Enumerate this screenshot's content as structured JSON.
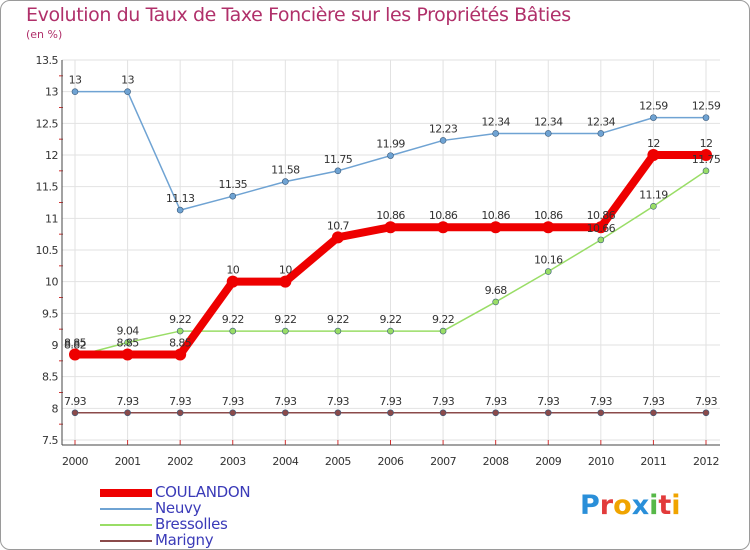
{
  "chart_data": {
    "type": "line",
    "title": "Evolution du Taux de Taxe Foncière sur les Propriétés Bâties",
    "subtitle": "(en %)",
    "xlabel": "",
    "ylabel": "",
    "categories": [
      "2000",
      "2001",
      "2002",
      "2003",
      "2004",
      "2005",
      "2006",
      "2007",
      "2008",
      "2009",
      "2010",
      "2011",
      "2012"
    ],
    "ylim": [
      7.5,
      13.5
    ],
    "yticks": [
      "7.5",
      "8",
      "8.5",
      "9",
      "9.5",
      "10",
      "10.5",
      "11",
      "11.5",
      "12",
      "12.5",
      "13",
      "13.5"
    ],
    "grid": true,
    "legend_position": "bottom-left",
    "series": [
      {
        "name": "COULANDON",
        "color": "#ee0000",
        "values": [
          8.85,
          8.85,
          8.85,
          10,
          10,
          10.7,
          10.86,
          10.86,
          10.86,
          10.86,
          10.86,
          12,
          12
        ],
        "labels": [
          "8.85",
          "8.85",
          "8.85",
          "10",
          "10",
          "10.7",
          "10.86",
          "10.86",
          "10.86",
          "10.86",
          "10.86",
          "12",
          "12"
        ]
      },
      {
        "name": "Neuvy",
        "color": "#6fa3d3",
        "values": [
          13,
          13,
          11.13,
          11.35,
          11.58,
          11.75,
          11.99,
          12.23,
          12.34,
          12.34,
          12.34,
          12.59,
          12.59
        ],
        "labels": [
          "13",
          "13",
          "11.13",
          "11.35",
          "11.58",
          "11.75",
          "11.99",
          "12.23",
          "12.34",
          "12.34",
          "12.34",
          "12.59",
          "12.59"
        ]
      },
      {
        "name": "Bressolles",
        "color": "#99dd66",
        "values": [
          8.82,
          9.04,
          9.22,
          9.22,
          9.22,
          9.22,
          9.22,
          9.22,
          9.68,
          10.16,
          10.66,
          11.19,
          11.75
        ],
        "labels": [
          "8.82",
          "9.04",
          "9.22",
          "9.22",
          "9.22",
          "9.22",
          "9.22",
          "9.22",
          "9.68",
          "10.16",
          "10.66",
          "11.19",
          "11.75"
        ]
      },
      {
        "name": "Marigny",
        "color": "#8b4a4a",
        "values": [
          7.93,
          7.93,
          7.93,
          7.93,
          7.93,
          7.93,
          7.93,
          7.93,
          7.93,
          7.93,
          7.93,
          7.93,
          7.93
        ],
        "labels": [
          "7.93",
          "7.93",
          "7.93",
          "7.93",
          "7.93",
          "7.93",
          "7.93",
          "7.93",
          "7.93",
          "7.93",
          "7.93",
          "7.93",
          "7.93"
        ]
      }
    ]
  },
  "logo": {
    "letters": [
      "P",
      "r",
      "o",
      "x",
      "i",
      "t",
      "i"
    ],
    "colors": [
      "#2a8fd9",
      "#e23b3b",
      "#f0a400",
      "#2a8fd9",
      "#57b848",
      "#e23b3b",
      "#f0a400"
    ]
  }
}
